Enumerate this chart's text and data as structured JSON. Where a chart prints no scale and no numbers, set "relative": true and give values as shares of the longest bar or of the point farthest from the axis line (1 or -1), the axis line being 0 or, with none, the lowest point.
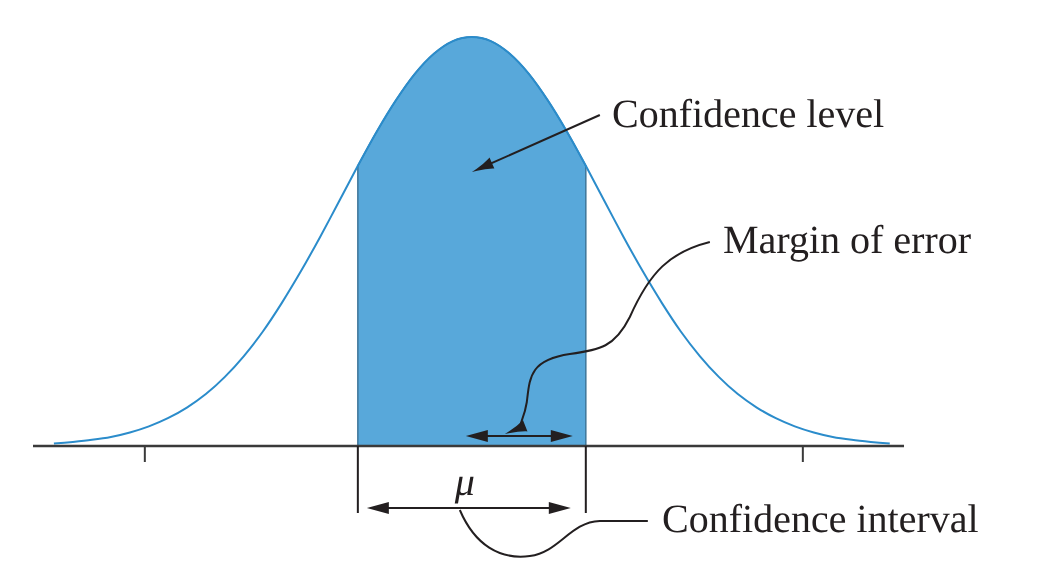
{
  "chart_data": {
    "type": "line",
    "relative": true,
    "categories": [
      null,
      null,
      null,
      null,
      null,
      null,
      null,
      null,
      null,
      null,
      null,
      null,
      null,
      null,
      null,
      null,
      null,
      null,
      null,
      null,
      null,
      null,
      null,
      null,
      null,
      null,
      null,
      null,
      null,
      null,
      null,
      null,
      null,
      null,
      null,
      null,
      null,
      null,
      null,
      null,
      null,
      null,
      null,
      null,
      null
    ],
    "series": [
      {
        "color": "#2b8ccb",
        "values": [
          0.006,
          0.01,
          0.015,
          0.022,
          0.033,
          0.048,
          0.068,
          0.094,
          0.127,
          0.169,
          0.22,
          0.28,
          0.35,
          0.427,
          0.51,
          0.597,
          0.685,
          0.769,
          0.845,
          0.91,
          0.959,
          0.99,
          1,
          0.99,
          0.959,
          0.91,
          0.845,
          0.769,
          0.685,
          0.597,
          0.51,
          0.427,
          0.35,
          0.28,
          0.22,
          0.169,
          0.127,
          0.094,
          0.068,
          0.048,
          0.033,
          0.022,
          0.015,
          0.01,
          0.006
        ]
      },
      {
        "type": "area",
        "color": "#58a8da",
        "values": [
          null,
          null,
          null,
          null,
          null,
          null,
          null,
          null,
          null,
          null,
          null,
          null,
          null,
          null,
          null,
          null,
          0.685,
          0.769,
          0.845,
          0.91,
          0.959,
          0.99,
          1,
          0.99,
          0.959,
          0.91,
          0.845,
          0.769,
          0.685,
          null,
          null,
          null,
          null,
          null,
          null,
          null,
          null,
          null,
          null,
          null,
          null,
          null,
          null,
          null,
          null
        ]
      }
    ],
    "annotations": [
      "Confidence level",
      "Margin of error",
      "Confidence interval",
      "μ"
    ]
  }
}
